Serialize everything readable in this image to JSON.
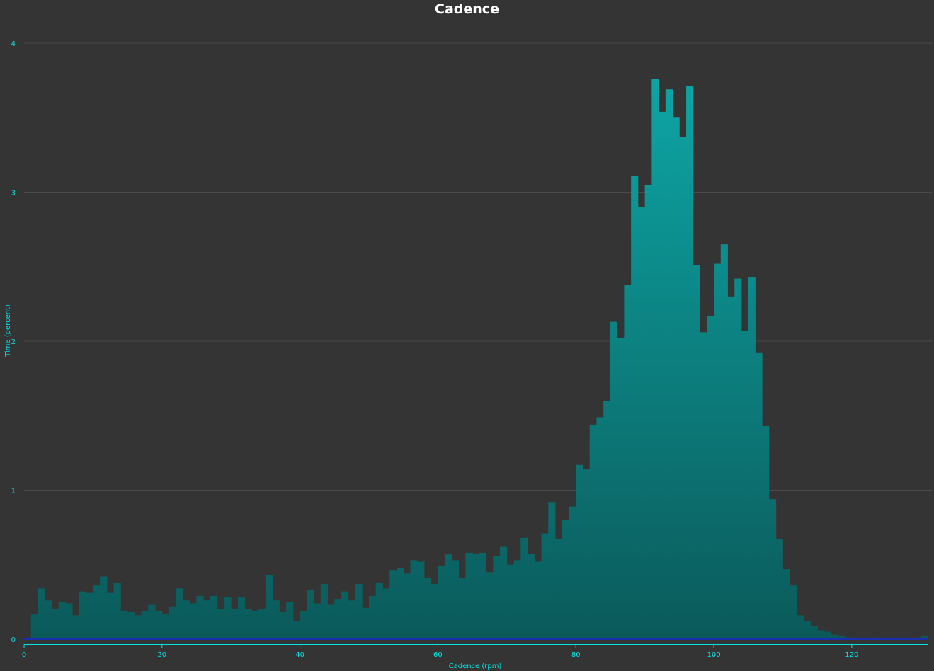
{
  "chart_data": {
    "type": "bar",
    "title": "Cadence",
    "xlabel": "Cadence (rpm)",
    "ylabel": "Time (percent)",
    "xlim": [
      0,
      131
    ],
    "ylim": [
      0,
      4
    ],
    "x_ticks": [
      0,
      20,
      40,
      60,
      80,
      100,
      120
    ],
    "y_ticks": [
      0,
      1,
      2,
      3,
      4
    ],
    "grid": true,
    "bin_width": 1,
    "x": [
      1,
      2,
      3,
      4,
      5,
      6,
      7,
      8,
      9,
      10,
      11,
      12,
      13,
      14,
      15,
      16,
      17,
      18,
      19,
      20,
      21,
      22,
      23,
      24,
      25,
      26,
      27,
      28,
      29,
      30,
      31,
      32,
      33,
      34,
      35,
      36,
      37,
      38,
      39,
      40,
      41,
      42,
      43,
      44,
      45,
      46,
      47,
      48,
      49,
      50,
      51,
      52,
      53,
      54,
      55,
      56,
      57,
      58,
      59,
      60,
      61,
      62,
      63,
      64,
      65,
      66,
      67,
      68,
      69,
      70,
      71,
      72,
      73,
      74,
      75,
      76,
      77,
      78,
      79,
      80,
      81,
      82,
      83,
      84,
      85,
      86,
      87,
      88,
      89,
      90,
      91,
      92,
      93,
      94,
      95,
      96,
      97,
      98,
      99,
      100,
      101,
      102,
      103,
      104,
      105,
      106,
      107,
      108,
      109,
      110,
      111,
      112,
      113,
      114,
      115,
      116,
      117,
      118,
      119,
      120,
      121,
      122,
      123,
      124,
      125,
      126,
      127,
      128,
      129,
      130
    ],
    "values": [
      0.17,
      0.34,
      0.26,
      0.2,
      0.25,
      0.24,
      0.16,
      0.32,
      0.31,
      0.36,
      0.42,
      0.31,
      0.38,
      0.19,
      0.18,
      0.16,
      0.19,
      0.23,
      0.19,
      0.17,
      0.22,
      0.34,
      0.26,
      0.24,
      0.29,
      0.26,
      0.29,
      0.2,
      0.28,
      0.2,
      0.28,
      0.2,
      0.19,
      0.2,
      0.43,
      0.26,
      0.18,
      0.25,
      0.12,
      0.19,
      0.33,
      0.24,
      0.37,
      0.23,
      0.27,
      0.32,
      0.26,
      0.37,
      0.21,
      0.29,
      0.38,
      0.34,
      0.46,
      0.48,
      0.44,
      0.53,
      0.52,
      0.41,
      0.37,
      0.49,
      0.57,
      0.53,
      0.41,
      0.58,
      0.57,
      0.58,
      0.45,
      0.56,
      0.62,
      0.5,
      0.53,
      0.68,
      0.57,
      0.52,
      0.71,
      0.92,
      0.67,
      0.8,
      0.89,
      1.17,
      1.14,
      1.44,
      1.49,
      1.6,
      2.13,
      2.02,
      2.38,
      3.11,
      2.9,
      3.05,
      3.76,
      3.54,
      3.69,
      3.5,
      3.37,
      3.71,
      2.51,
      2.06,
      2.17,
      2.52,
      2.65,
      2.3,
      2.42,
      2.07,
      2.43,
      1.92,
      1.43,
      0.94,
      0.67,
      0.47,
      0.36,
      0.16,
      0.12,
      0.09,
      0.06,
      0.05,
      0.03,
      0.02,
      0.01,
      0.01,
      0,
      0,
      0.01,
      0,
      0.01,
      0,
      0.01,
      0,
      0.01,
      0.02
    ]
  },
  "colors": {
    "background": "#343434",
    "bar_top": "#0da5a4",
    "bar_bottom": "#0b5a5a",
    "axis": "#00e5e5",
    "baseline": "#1a2fb0",
    "grid": "#4a4a4a",
    "title": "#ffffff"
  }
}
